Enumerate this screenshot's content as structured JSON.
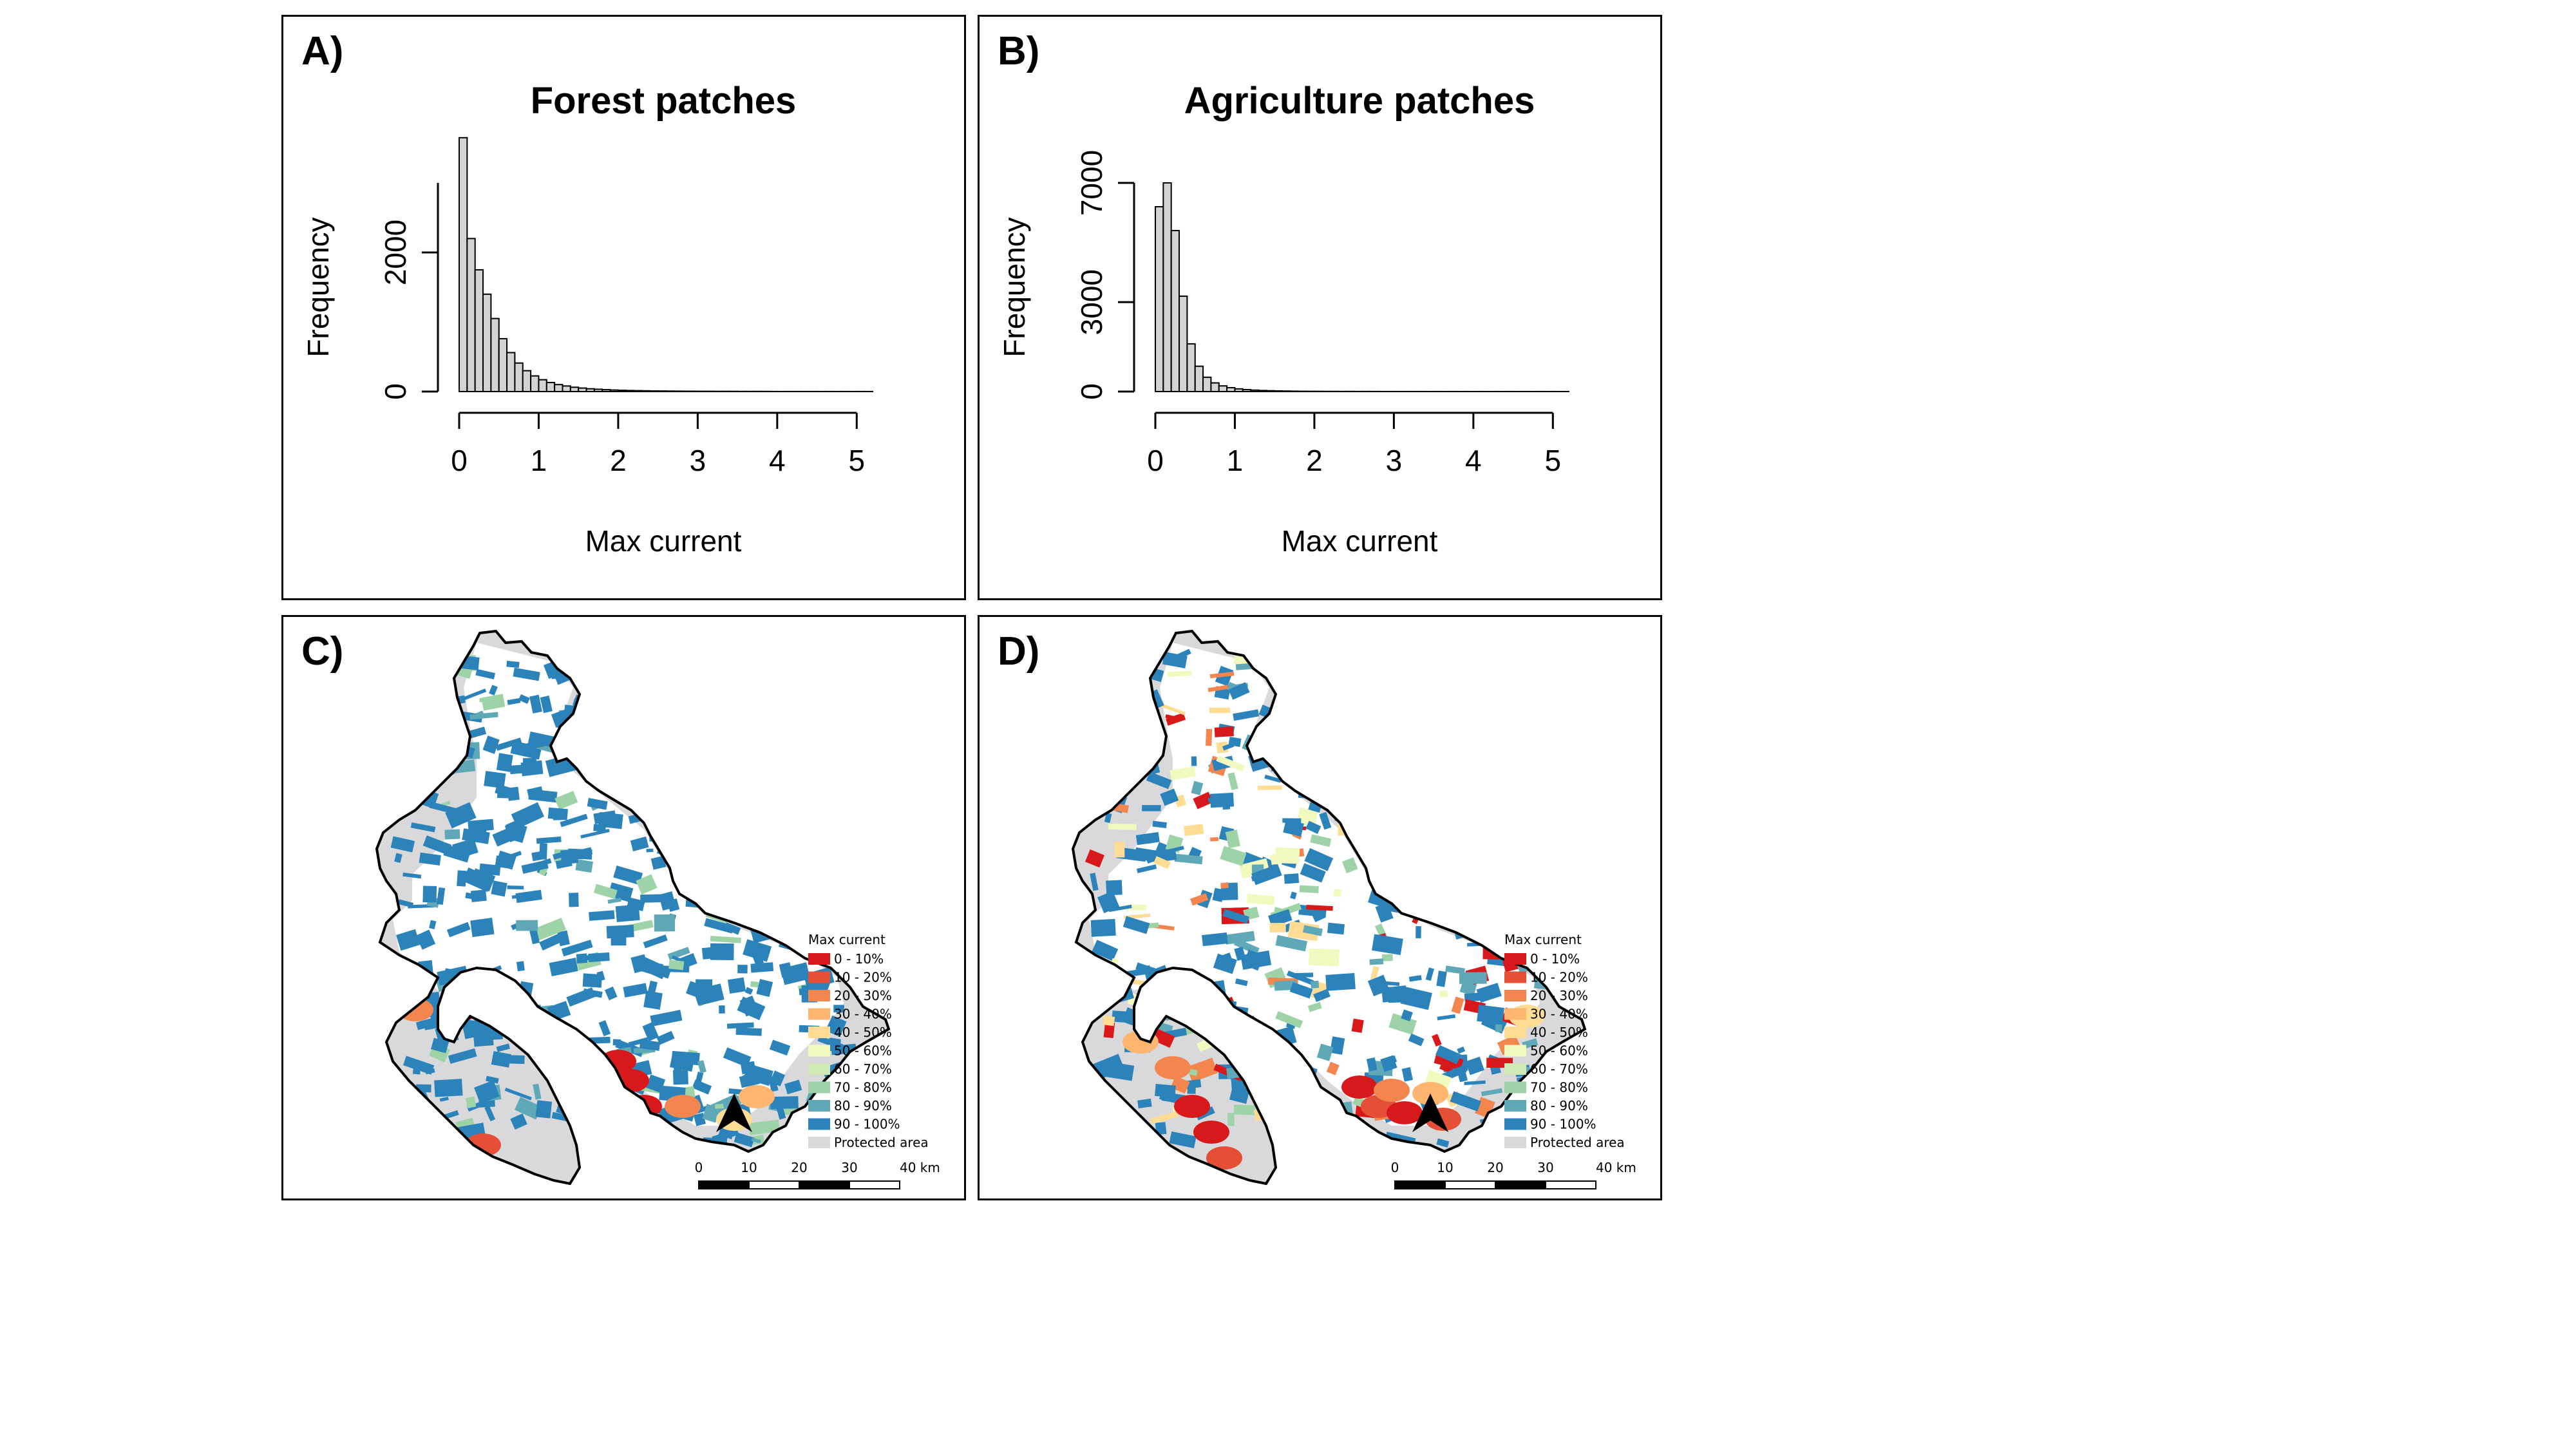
{
  "panels": {
    "A": {
      "label": "A)"
    },
    "B": {
      "label": "B)"
    },
    "C": {
      "label": "C)"
    },
    "D": {
      "label": "D)"
    }
  },
  "map_legend": {
    "title": "Max current",
    "classes": [
      {
        "label": "0 - 10%",
        "color": "#d7191c"
      },
      {
        "label": "10 - 20%",
        "color": "#e54f35"
      },
      {
        "label": "20 - 30%",
        "color": "#f3854e"
      },
      {
        "label": "30 - 40%",
        "color": "#fdb56f"
      },
      {
        "label": "40 - 50%",
        "color": "#fedc94"
      },
      {
        "label": "50 - 60%",
        "color": "#f2f9bf"
      },
      {
        "label": "60 - 70%",
        "color": "#cfeab5"
      },
      {
        "label": "70 - 80%",
        "color": "#9dd3a7"
      },
      {
        "label": "80 - 90%",
        "color": "#5fa8b8"
      },
      {
        "label": "90 - 100%",
        "color": "#2b83ba"
      },
      {
        "label": "Protected area",
        "color": "#d9d9dc"
      }
    ],
    "scale_labels": [
      "0",
      "10",
      "20",
      "30",
      "40 km"
    ]
  },
  "chart_data": [
    {
      "type": "bar",
      "panel": "A)",
      "title": "Forest patches",
      "xlabel": "Max current",
      "ylabel": "Frequency",
      "xlim": [
        0,
        5.2
      ],
      "ylim": [
        0,
        3000
      ],
      "x_ticks": [
        "0",
        "1",
        "2",
        "3",
        "4",
        "5"
      ],
      "y_ticks": [
        "0",
        "2000"
      ],
      "bin_width": 0.1,
      "values": [
        3650,
        2200,
        1750,
        1400,
        1050,
        760,
        560,
        410,
        300,
        225,
        170,
        130,
        100,
        80,
        62,
        50,
        40,
        33,
        27,
        22,
        18,
        15,
        13,
        11,
        9,
        8,
        7,
        6,
        5,
        5,
        4,
        4,
        3,
        3,
        3,
        2,
        2,
        2,
        2,
        1,
        1,
        1,
        1,
        1,
        1,
        1,
        1,
        1,
        1,
        1,
        1,
        1
      ]
    },
    {
      "type": "bar",
      "panel": "B)",
      "title": "Agriculture patches",
      "xlabel": "Max current",
      "ylabel": "Frequency",
      "xlim": [
        0,
        5.2
      ],
      "ylim": [
        0,
        7000
      ],
      "x_ticks": [
        "0",
        "1",
        "2",
        "3",
        "4",
        "5"
      ],
      "y_ticks": [
        "0",
        "3000",
        "7000"
      ],
      "bin_width": 0.1,
      "values": [
        6200,
        7000,
        5400,
        3200,
        1600,
        850,
        480,
        290,
        190,
        130,
        90,
        65,
        48,
        36,
        28,
        22,
        17,
        13,
        10,
        8,
        7,
        6,
        5,
        4,
        4,
        3,
        3,
        3,
        2,
        2,
        2,
        2,
        2,
        2,
        1,
        1,
        1,
        1,
        1,
        1,
        1,
        1,
        1,
        1,
        1,
        1,
        1,
        1,
        1,
        1,
        1,
        1
      ]
    }
  ]
}
